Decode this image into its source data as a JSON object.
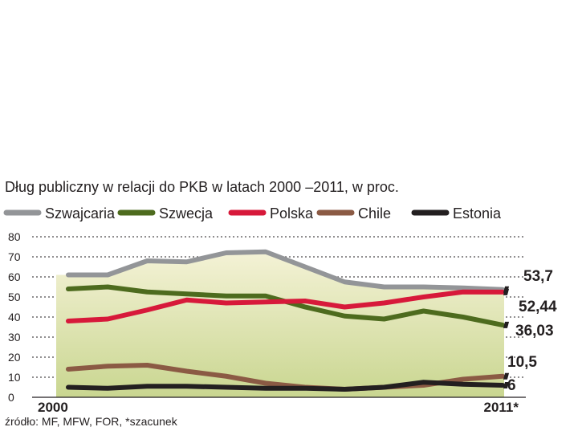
{
  "chart_data": {
    "type": "line",
    "title": "Dług publiczny w relacji do PKB w latach 2000 –2011, w proc.",
    "source": "źródło: MF, MFW, FOR, *szacunek",
    "x": [
      2000,
      2001,
      2002,
      2003,
      2004,
      2005,
      2006,
      2007,
      2008,
      2009,
      2010,
      2011
    ],
    "x_tick_labels": [
      "2000",
      "2011*"
    ],
    "ylim": [
      0,
      80
    ],
    "yticks": [
      0,
      10,
      20,
      30,
      40,
      50,
      60,
      70,
      80
    ],
    "grid": "horizontal dashed",
    "legend_position": "top",
    "series": [
      {
        "name": "Szwajcaria",
        "color": "#939598",
        "values": [
          61,
          61,
          68,
          67.5,
          72,
          72.5,
          65,
          57.5,
          55,
          55,
          54.5,
          53.7
        ],
        "end_label": "53,7"
      },
      {
        "name": "Szwecja",
        "color": "#4d6b1e",
        "values": [
          54,
          55,
          52.5,
          51.5,
          50.5,
          50.5,
          45,
          40.5,
          39,
          43,
          40,
          36.03
        ],
        "end_label": "36,03"
      },
      {
        "name": "Polska",
        "color": "#d7193a",
        "values": [
          38,
          39,
          43.5,
          48.5,
          47,
          47.5,
          48,
          45,
          47,
          50,
          52.5,
          52.44
        ],
        "end_label": "52,44"
      },
      {
        "name": "Chile",
        "color": "#8b5a44",
        "values": [
          14,
          15.5,
          16,
          13,
          10.5,
          7,
          5,
          4,
          5,
          6,
          9,
          10.5
        ],
        "end_label": "10,5"
      },
      {
        "name": "Estonia",
        "color": "#231f20",
        "values": [
          5,
          4.5,
          5.5,
          5.5,
          5,
          4.5,
          4.5,
          4,
          5,
          7.5,
          6.5,
          6
        ],
        "end_label": "6"
      }
    ]
  }
}
